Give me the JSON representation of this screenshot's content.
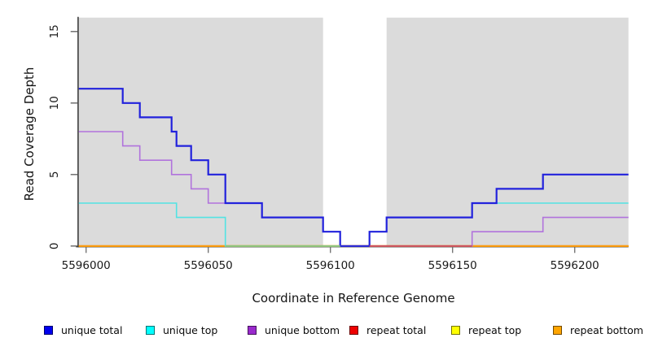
{
  "chart_data": {
    "type": "line",
    "subtype": "step-coverage",
    "title": "",
    "xlabel": "Coordinate in Reference Genome",
    "ylabel": "Read Coverage Depth",
    "xlim": [
      5595997,
      5596222
    ],
    "ylim": [
      0,
      16
    ],
    "x_ticks": [
      5596000,
      5596050,
      5596100,
      5596150,
      5596200
    ],
    "y_ticks": [
      0,
      5,
      10,
      15
    ],
    "grid": false,
    "legend_position": "bottom",
    "plot_bg_color": "#DBDBDB",
    "gap_band": {
      "x_start": 5596097,
      "x_end": 5596123,
      "color": "#FFFFFF"
    },
    "series": [
      {
        "name": "repeat total",
        "color": "#CD0000",
        "width": 1.8,
        "x": [
          5595997
        ],
        "y": [
          0
        ]
      },
      {
        "name": "repeat top",
        "color": "#FFFF00",
        "width": 1.8,
        "x": [
          5595997
        ],
        "y": [
          0
        ]
      },
      {
        "name": "repeat bottom",
        "color": "#FF9A0D",
        "width": 1.8,
        "x": [
          5595997
        ],
        "y": [
          0
        ]
      },
      {
        "name": "unique top",
        "color": "#53E3E3",
        "width": 1.6,
        "x": [
          5595997,
          5596037,
          5596057,
          5596116,
          5596123,
          5596158
        ],
        "y": [
          3,
          2,
          0,
          1,
          2,
          3
        ]
      },
      {
        "name": "unique bottom",
        "color": "#B173DC",
        "width": 1.6,
        "x": [
          5595997,
          5596015,
          5596022,
          5596035,
          5596043,
          5596050,
          5596072,
          5596097,
          5596104,
          5596158,
          5596187
        ],
        "y": [
          8,
          7,
          6,
          5,
          4,
          3,
          2,
          1,
          0,
          1,
          2
        ]
      },
      {
        "name": "unique total",
        "color": "#2222DC",
        "width": 2.2,
        "x": [
          5595997,
          5596015,
          5596022,
          5596035,
          5596037,
          5596043,
          5596050,
          5596057,
          5596072,
          5596097,
          5596104,
          5596116,
          5596123,
          5596158,
          5596168,
          5596187
        ],
        "y": [
          11,
          10,
          9,
          8,
          7,
          6,
          5,
          3,
          2,
          1,
          0,
          1,
          2,
          3,
          4,
          5
        ]
      }
    ],
    "zero_line_blend_segments": [
      {
        "x_start": 5596057,
        "x_end": 5596104,
        "color": "#85C785"
      },
      {
        "x_start": 5596116,
        "x_end": 5596158,
        "color": "#C94B63"
      }
    ],
    "legend": [
      {
        "label": "unique total",
        "color": "#0000EE"
      },
      {
        "label": "unique top",
        "color": "#00FFFF"
      },
      {
        "label": "unique bottom",
        "color": "#9A2ACD"
      },
      {
        "label": "repeat total",
        "color": "#EE0000"
      },
      {
        "label": "repeat top",
        "color": "#FFFF00"
      },
      {
        "label": "repeat bottom",
        "color": "#FFA500"
      }
    ]
  }
}
